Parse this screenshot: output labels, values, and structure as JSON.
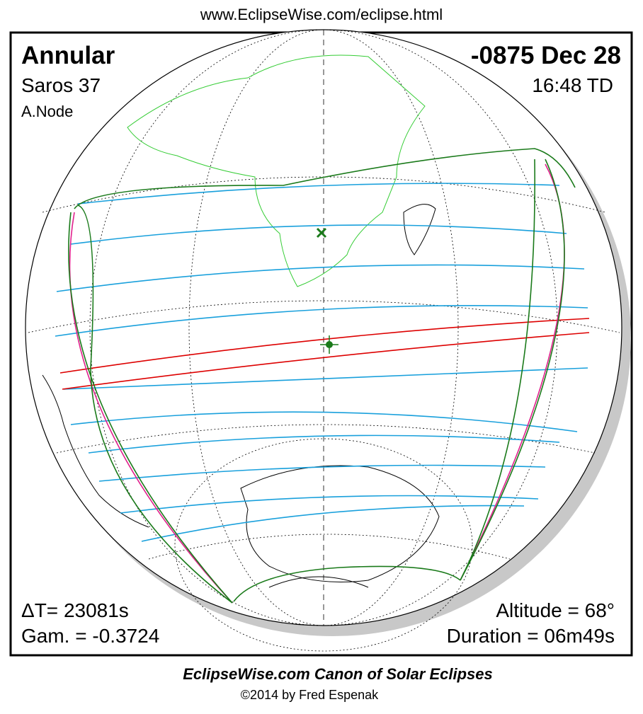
{
  "header": {
    "url": "www.EclipseWise.com/eclipse.html"
  },
  "panel": {
    "type": "Annular",
    "saros": "Saros  37",
    "node": "A.Node",
    "date": "-0875 Dec 28",
    "time": "16:48 TD",
    "delta_t": "ΔT=  23081s",
    "gamma": "Gam. = -0.3724",
    "altitude": "Altitude = 68°",
    "duration": "Duration = 06m49s"
  },
  "footer": {
    "title": "EclipseWise.com Canon of Solar Eclipses",
    "copyright": "©2014 by Fred Espenak"
  }
}
